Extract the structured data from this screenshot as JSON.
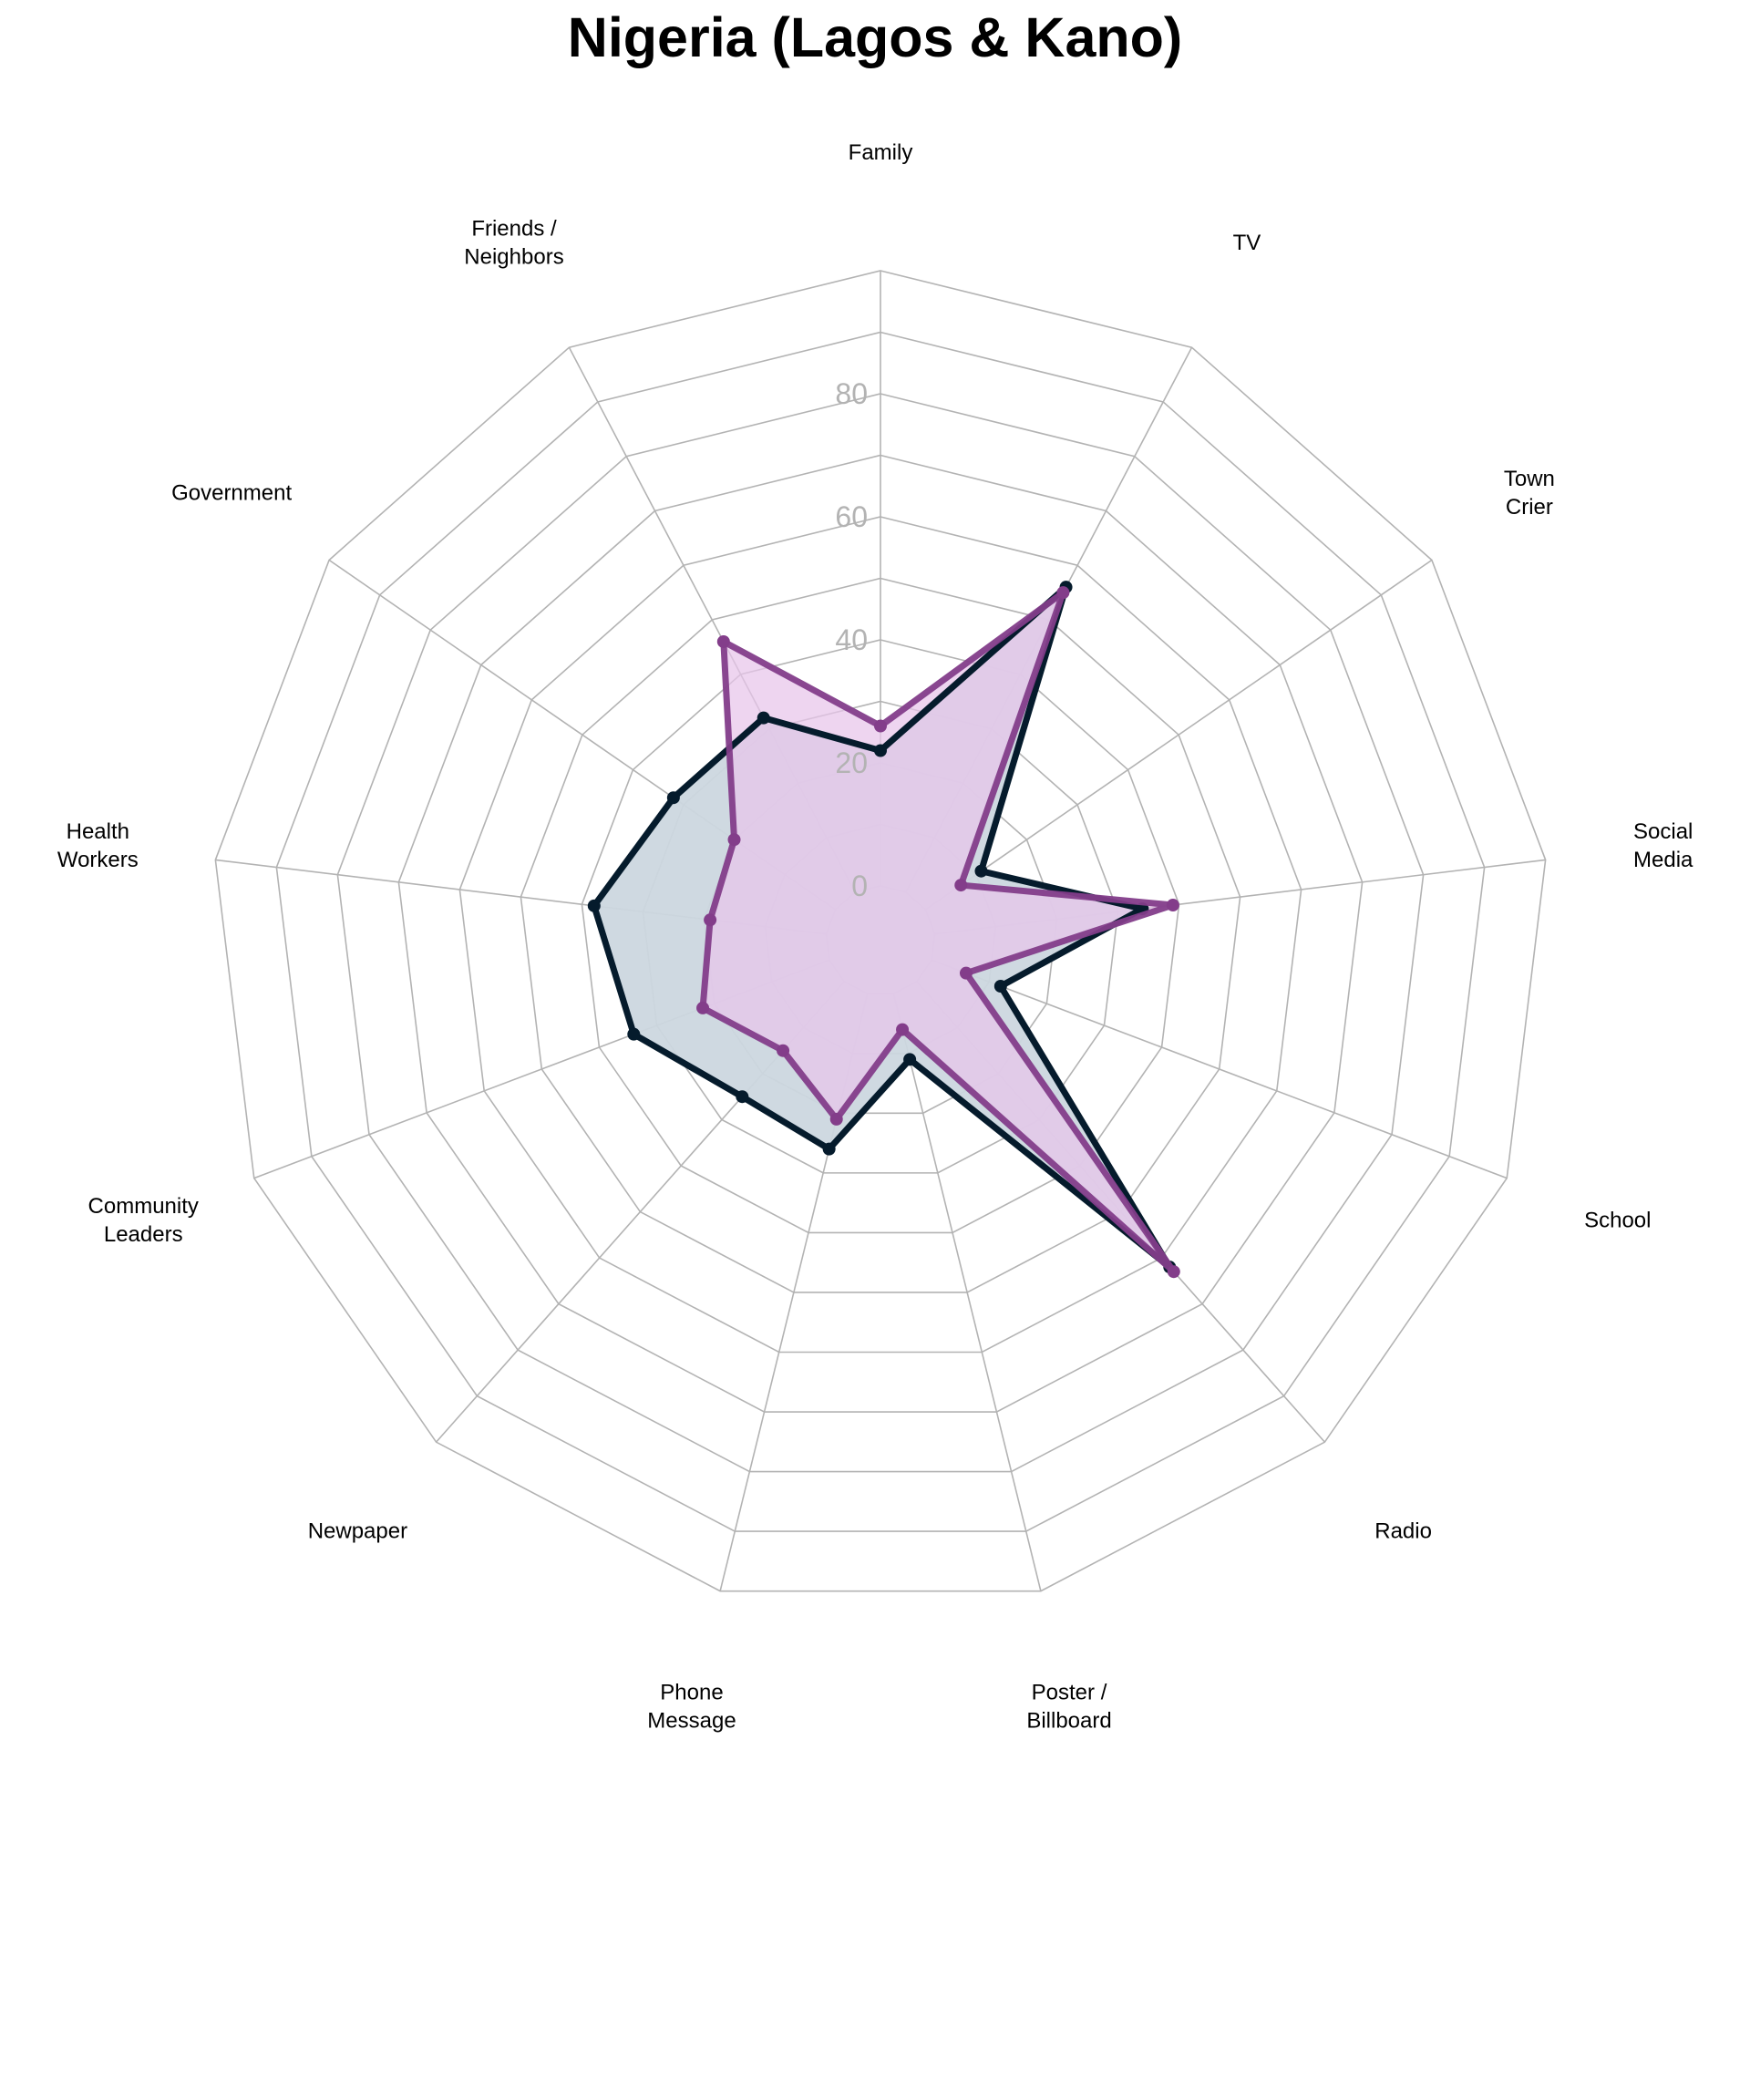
{
  "chart_data": {
    "type": "radar",
    "title": "Nigeria (Lagos & Kano)",
    "categories": [
      "Family",
      "TV",
      "Town\nCrier",
      "Social\nMedia",
      "School",
      "Radio",
      "Poster /\nBillboard",
      "Phone\nMessage",
      "Newpaper",
      "Community\nLeaders",
      "Health\nWorkers",
      "Government",
      "Friends /\nNeighbors"
    ],
    "rlim": [
      0,
      80
    ],
    "rticks": [
      0,
      20,
      40,
      60,
      80
    ],
    "rtick_labels": [
      "0",
      "20",
      "40",
      "60",
      "80"
    ],
    "grid": true,
    "series": [
      {
        "color": "#051b2c",
        "fill": "#ccd7df",
        "values": [
          22,
          56,
          11,
          34,
          12,
          62,
          11,
          26,
          25,
          34,
          38,
          32,
          32
        ]
      },
      {
        "color": "#833d8a",
        "fill": "#e8c5ea",
        "values": [
          26,
          55,
          7,
          39,
          6,
          63,
          6,
          21,
          15,
          22,
          19,
          20,
          46
        ]
      }
    ]
  }
}
